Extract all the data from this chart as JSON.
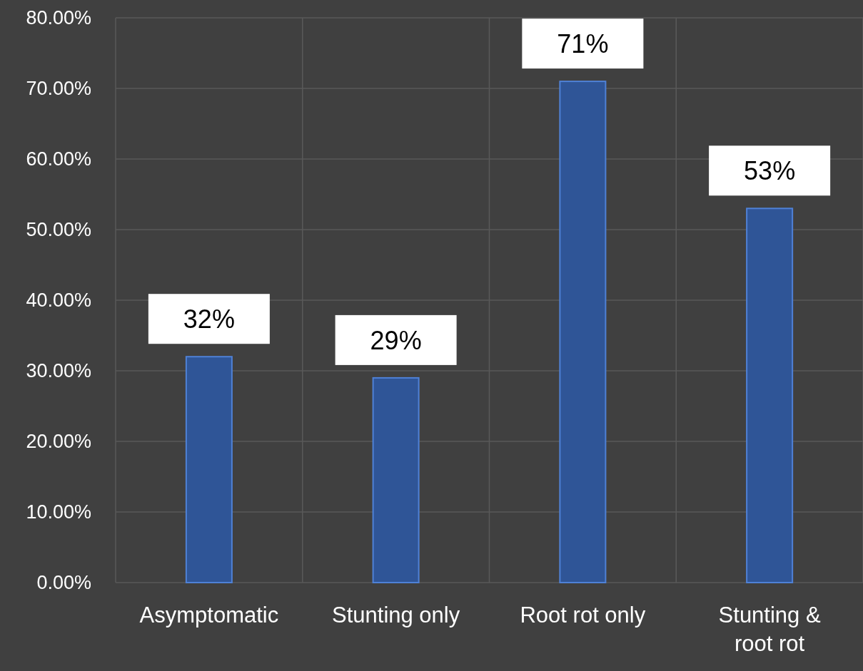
{
  "chart_data": {
    "type": "bar",
    "categories": [
      "Asymptomatic",
      "Stunting only",
      "Root rot only",
      "Stunting & root rot"
    ],
    "values": [
      32,
      29,
      71,
      53
    ],
    "value_labels": [
      "32%",
      "29%",
      "71%",
      "53%"
    ],
    "color": "#2f5597",
    "ylim": [
      0,
      80
    ],
    "yticks": [
      {
        "value": 0,
        "label": "0.00%"
      },
      {
        "value": 10,
        "label": "10.00%"
      },
      {
        "value": 20,
        "label": "20.00%"
      },
      {
        "value": 30,
        "label": "30.00%"
      },
      {
        "value": 40,
        "label": "40.00%"
      },
      {
        "value": 50,
        "label": "50.00%"
      },
      {
        "value": 60,
        "label": "60.00%"
      },
      {
        "value": 70,
        "label": "70.00%"
      },
      {
        "value": 80,
        "label": "80.00%"
      }
    ],
    "grid": true
  }
}
